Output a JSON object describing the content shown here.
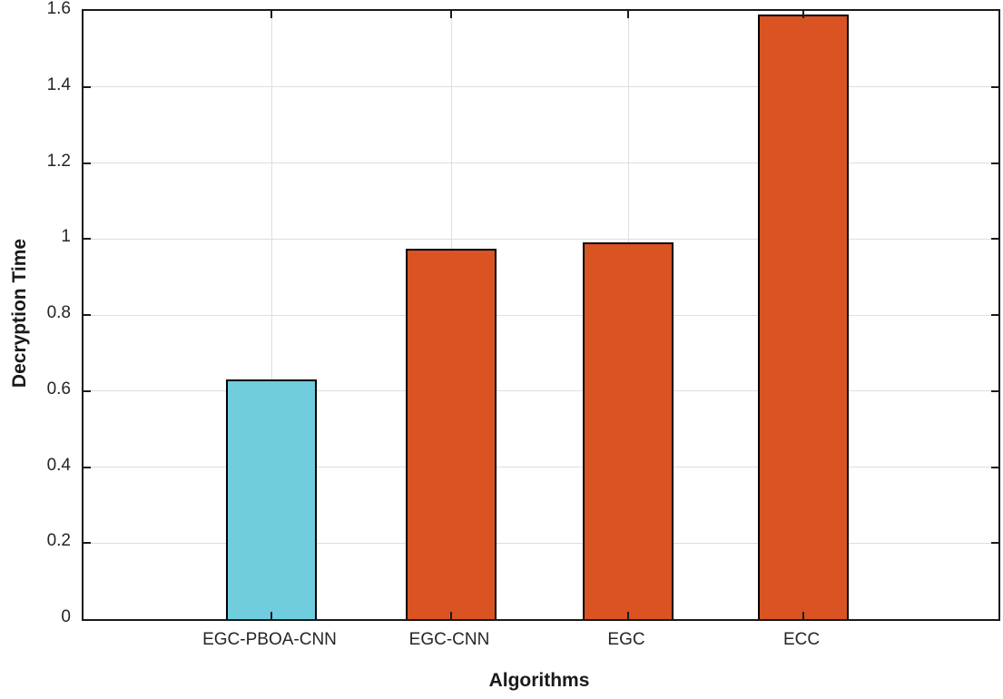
{
  "chart_data": {
    "type": "bar",
    "title": "",
    "xlabel": "Algorithms",
    "ylabel": "Decryption Time",
    "categories": [
      "EGC-PBOA-CNN",
      "EGC-CNN",
      "EGC",
      "ECC"
    ],
    "values": [
      0.63,
      0.975,
      0.99,
      1.59
    ],
    "bar_colors": [
      "#6FCDDE",
      "#D95323",
      "#D95323",
      "#D95323"
    ],
    "bar_edge_color": "#000000",
    "highlighted_category": "EGC-PBOA-CNN",
    "ylim": [
      0,
      1.6
    ],
    "ytick_values": [
      0,
      0.2,
      0.4,
      0.6,
      0.8,
      1.0,
      1.2,
      1.4,
      1.6
    ],
    "ytick_labels": [
      "0",
      "0.2",
      "0.4",
      "0.6",
      "0.8",
      "1",
      "1.2",
      "1.4",
      "1.6"
    ],
    "grid": "on",
    "grid_color": "#dedede",
    "axis_color": "#1a1a1a",
    "background_color": "#ffffff",
    "legend": "none"
  }
}
